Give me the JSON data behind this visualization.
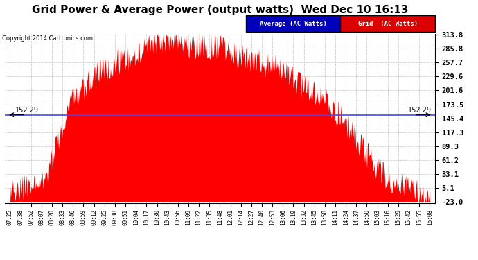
{
  "title": "Grid Power & Average Power (output watts)  Wed Dec 10 16:13",
  "copyright": "Copyright 2014 Cartronics.com",
  "legend_avg": "Average (AC Watts)",
  "legend_grid": "Grid  (AC Watts)",
  "legend_avg_bg": "#0000bb",
  "legend_grid_bg": "#dd0000",
  "avg_value": 152.29,
  "ymin": -23.0,
  "ymax": 313.8,
  "yticks": [
    313.8,
    285.8,
    257.7,
    229.6,
    201.6,
    173.5,
    145.4,
    117.3,
    89.3,
    61.2,
    33.1,
    5.1,
    -23.0
  ],
  "background_color": "#ffffff",
  "grid_color": "#bbbbbb",
  "fill_color": "#ff0000",
  "avg_line_color": "#4444ff",
  "title_fontsize": 11,
  "xtick_fontsize": 5.5,
  "ytick_fontsize": 7.5,
  "xticks": [
    "07:25",
    "07:38",
    "07:52",
    "08:07",
    "08:20",
    "08:33",
    "08:46",
    "08:59",
    "09:12",
    "09:25",
    "09:38",
    "09:51",
    "10:04",
    "10:17",
    "10:30",
    "10:43",
    "10:56",
    "11:09",
    "11:22",
    "11:35",
    "11:48",
    "12:01",
    "12:14",
    "12:27",
    "12:40",
    "12:53",
    "13:06",
    "13:19",
    "13:32",
    "13:45",
    "13:58",
    "14:11",
    "14:24",
    "14:37",
    "14:50",
    "15:03",
    "15:16",
    "15:29",
    "15:42",
    "15:55",
    "16:08"
  ],
  "base_y": [
    -10,
    5,
    10,
    15,
    60,
    130,
    185,
    210,
    230,
    248,
    258,
    265,
    272,
    288,
    300,
    302,
    298,
    292,
    288,
    290,
    293,
    278,
    270,
    264,
    257,
    250,
    238,
    222,
    208,
    196,
    182,
    162,
    132,
    102,
    72,
    46,
    26,
    15,
    5,
    -5,
    -15
  ],
  "noise_amplitude": 28,
  "noise_seed": 7
}
